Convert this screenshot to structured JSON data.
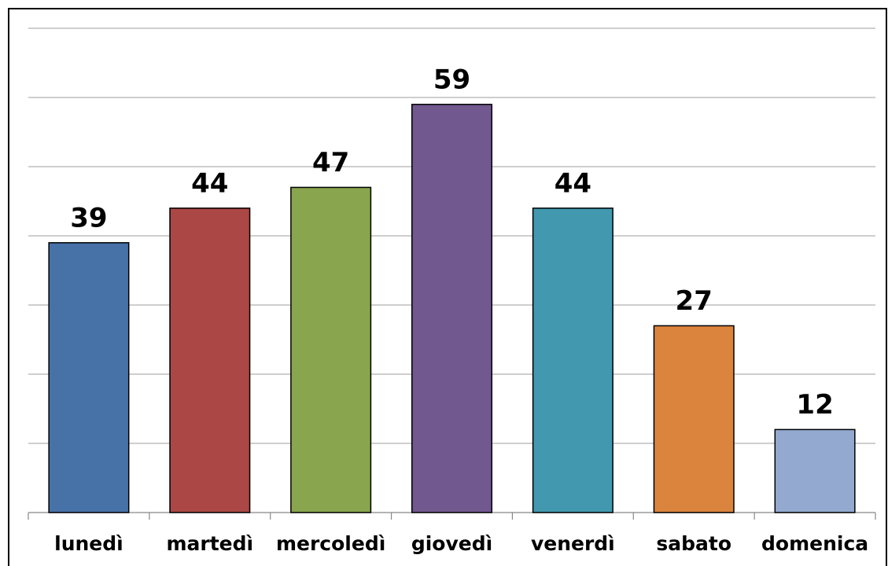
{
  "chart_data": {
    "type": "bar",
    "categories": [
      "lunedì",
      "martedì",
      "mercoledì",
      "giovedì",
      "venerdì",
      "sabato",
      "domenica"
    ],
    "values": [
      39,
      44,
      47,
      59,
      44,
      27,
      12
    ],
    "colors": [
      "#4672a8",
      "#ab4744",
      "#89a54e",
      "#71588f",
      "#4198af",
      "#db843d",
      "#93a9cf"
    ],
    "ylim": [
      0,
      70
    ],
    "yticks": [
      0,
      10,
      20,
      30,
      40,
      50,
      60,
      70
    ],
    "grid": true
  }
}
